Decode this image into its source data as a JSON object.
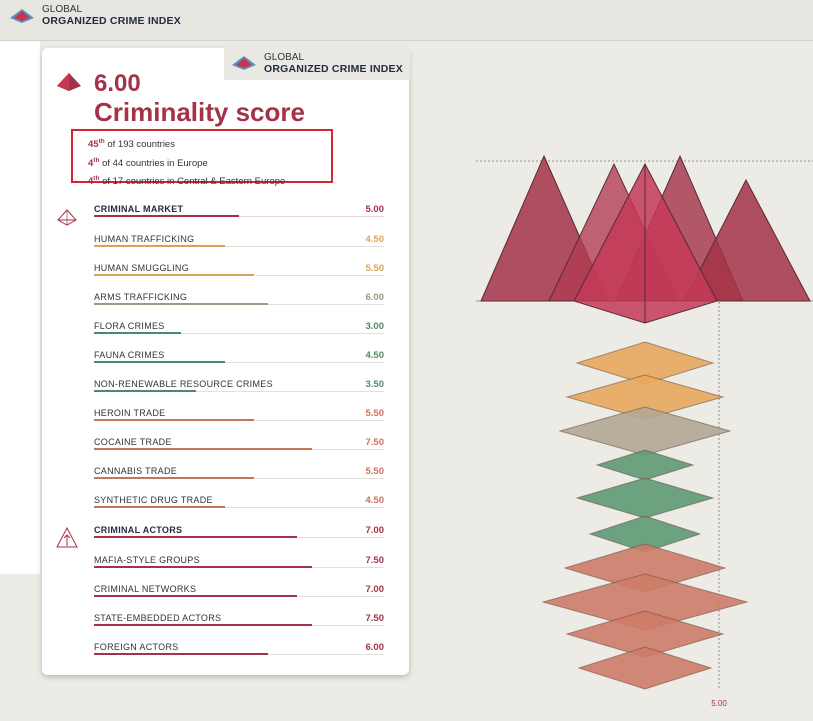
{
  "header": {
    "brand_line1": "GLOBAL",
    "brand_line2": "ORGANIZED CRIME INDEX"
  },
  "card_header": {
    "brand_line1": "GLOBAL",
    "brand_line2": "ORGANIZED CRIME INDEX"
  },
  "score": {
    "value": "6.00",
    "label": "Criminality score"
  },
  "ranks": [
    {
      "num": "45",
      "suffix": "th",
      "text": " of 193 countries"
    },
    {
      "num": "4",
      "suffix": "th",
      "text": " of 44 countries in Europe"
    },
    {
      "num": "4",
      "suffix": "th",
      "text": " of 17 countries in Central & Eastern Europe"
    }
  ],
  "criminal_market": {
    "label": "CRIMINAL MARKET",
    "value": "5.00",
    "color": "#a43248",
    "items": [
      {
        "label": "HUMAN TRAFFICKING",
        "value": "4.50",
        "color": "#e0a05a"
      },
      {
        "label": "HUMAN SMUGGLING",
        "value": "5.50",
        "color": "#e0a05a"
      },
      {
        "label": "ARMS TRAFFICKING",
        "value": "6.00",
        "color": "#9d9888"
      },
      {
        "label": "FLORA CRIMES",
        "value": "3.00",
        "color": "#4e8a66"
      },
      {
        "label": "FAUNA CRIMES",
        "value": "4.50",
        "color": "#4e8a66"
      },
      {
        "label": "NON-RENEWABLE RESOURCE CRIMES",
        "value": "3.50",
        "color": "#4e8a66"
      },
      {
        "label": "HEROIN TRADE",
        "value": "5.50",
        "color": "#c8735d"
      },
      {
        "label": "COCAINE TRADE",
        "value": "7.50",
        "color": "#c8735d"
      },
      {
        "label": "CANNABIS TRADE",
        "value": "5.50",
        "color": "#c8735d"
      },
      {
        "label": "SYNTHETIC DRUG TRADE",
        "value": "4.50",
        "color": "#c8735d"
      }
    ]
  },
  "criminal_actors": {
    "label": "CRIMINAL ACTORS",
    "value": "7.00",
    "color": "#a43248",
    "items": [
      {
        "label": "MAFIA-STYLE GROUPS",
        "value": "7.50",
        "color": "#a43248"
      },
      {
        "label": "CRIMINAL NETWORKS",
        "value": "7.00",
        "color": "#a43248"
      },
      {
        "label": "STATE-EMBEDDED ACTORS",
        "value": "7.50",
        "color": "#a43248"
      },
      {
        "label": "FOREIGN ACTORS",
        "value": "6.00",
        "color": "#a43248"
      }
    ]
  },
  "viz": {
    "axis_label": "5.00",
    "diamond_colors": [
      "#e8a85e",
      "#e8a85e",
      "#b3a793",
      "#5e9a74",
      "#5e9a74",
      "#5e9a74",
      "#cd7c68",
      "#cd7c68",
      "#cd7c68",
      "#cd7c68"
    ]
  }
}
